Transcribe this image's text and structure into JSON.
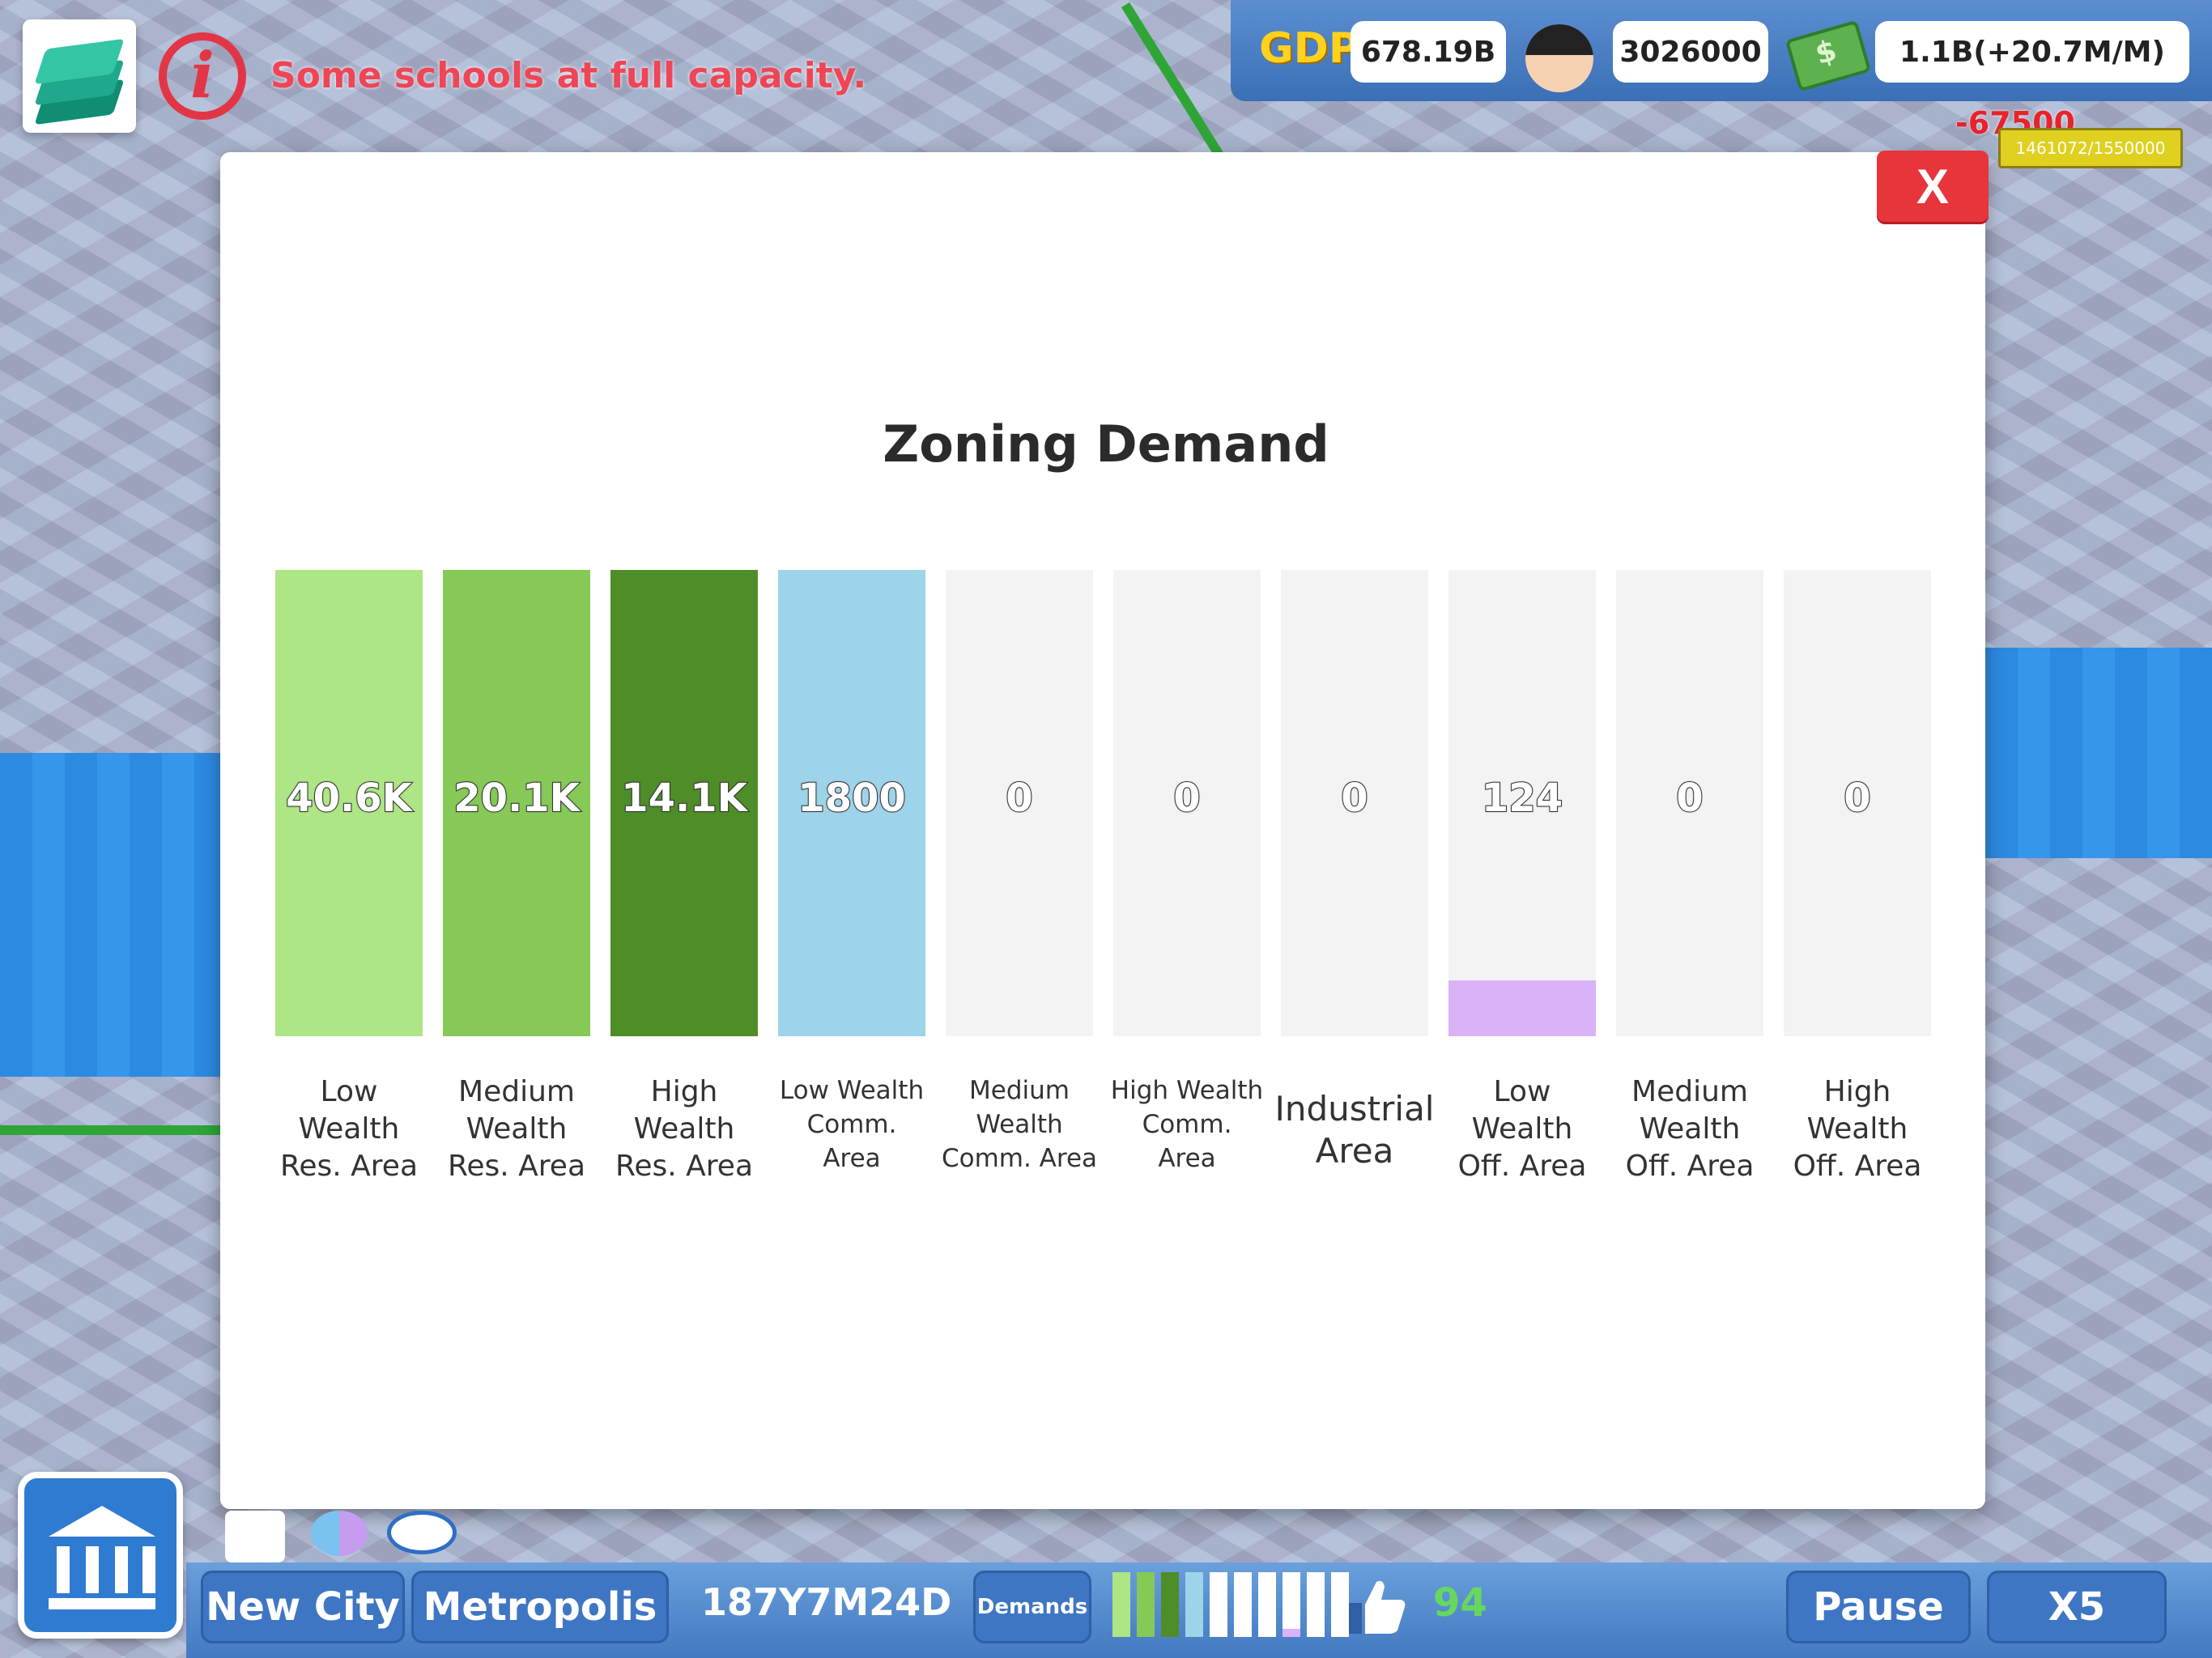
{
  "hud": {
    "alert_text": "Some schools at full capacity.",
    "gdp_label": "GDP",
    "gdp_value": "678.19B",
    "population": "3026000",
    "funds": "1.1B(+20.7M/M)",
    "cost_float": "-67500",
    "capacity": "1461072/1550000"
  },
  "modal": {
    "title": "Zoning Demand",
    "close_label": "X"
  },
  "chart_data": {
    "type": "bar",
    "title": "Zoning Demand",
    "categories": [
      "Low Wealth Res. Area",
      "Medium Wealth Res. Area",
      "High Wealth Res. Area",
      "Low Wealth Comm. Area",
      "Medium Wealth Comm. Area",
      "High Wealth Comm. Area",
      "Industrial Area",
      "Low Wealth Off. Area",
      "Medium Wealth Off. Area",
      "High Wealth Off. Area"
    ],
    "label_lines": [
      [
        "Low",
        "Wealth",
        "Res. Area"
      ],
      [
        "Medium",
        "Wealth",
        "Res. Area"
      ],
      [
        "High",
        "Wealth",
        "Res. Area"
      ],
      [
        "Low Wealth",
        "Comm.",
        "Area"
      ],
      [
        "Medium",
        "Wealth",
        "Comm. Area"
      ],
      [
        "High Wealth",
        "Comm.",
        "Area"
      ],
      [
        "Industrial",
        "Area"
      ],
      [
        "Low",
        "Wealth",
        "Off. Area"
      ],
      [
        "Medium",
        "Wealth",
        "Off. Area"
      ],
      [
        "High",
        "Wealth",
        "Off. Area"
      ]
    ],
    "value_labels": [
      "40.6K",
      "20.1K",
      "14.1K",
      "1800",
      "0",
      "0",
      "0",
      "124",
      "0",
      "0"
    ],
    "values": [
      40600,
      20100,
      14100,
      1800,
      0,
      0,
      0,
      124,
      0,
      0
    ],
    "fill_fraction": [
      1.0,
      1.0,
      1.0,
      1.0,
      0.0,
      0.0,
      0.0,
      0.12,
      0.0,
      0.0
    ],
    "colors": [
      "#aee585",
      "#86c956",
      "#4e8d28",
      "#9dd4ea",
      "#f3f3f3",
      "#f3f3f3",
      "#f3f3f3",
      "#d9b3f6",
      "#f3f3f3",
      "#f3f3f3"
    ],
    "grid": false,
    "legend": "none"
  },
  "toolbar": {
    "city_name": "New City",
    "city_rank": "Metropolis",
    "date": "187Y7M24D",
    "demands_label": "Demands",
    "happiness": "94",
    "pause_label": "Pause",
    "speed_label": "X5"
  },
  "mini_demand": {
    "fill_fraction": [
      1.0,
      1.0,
      1.0,
      1.0,
      0.0,
      0.0,
      0.0,
      0.12,
      0.0,
      0.0
    ],
    "colors": [
      "#aee585",
      "#86c956",
      "#4e8d28",
      "#9dd4ea",
      "#ffffff",
      "#ffffff",
      "#ffffff",
      "#d9b3f6",
      "#ffffff",
      "#ffffff"
    ]
  }
}
